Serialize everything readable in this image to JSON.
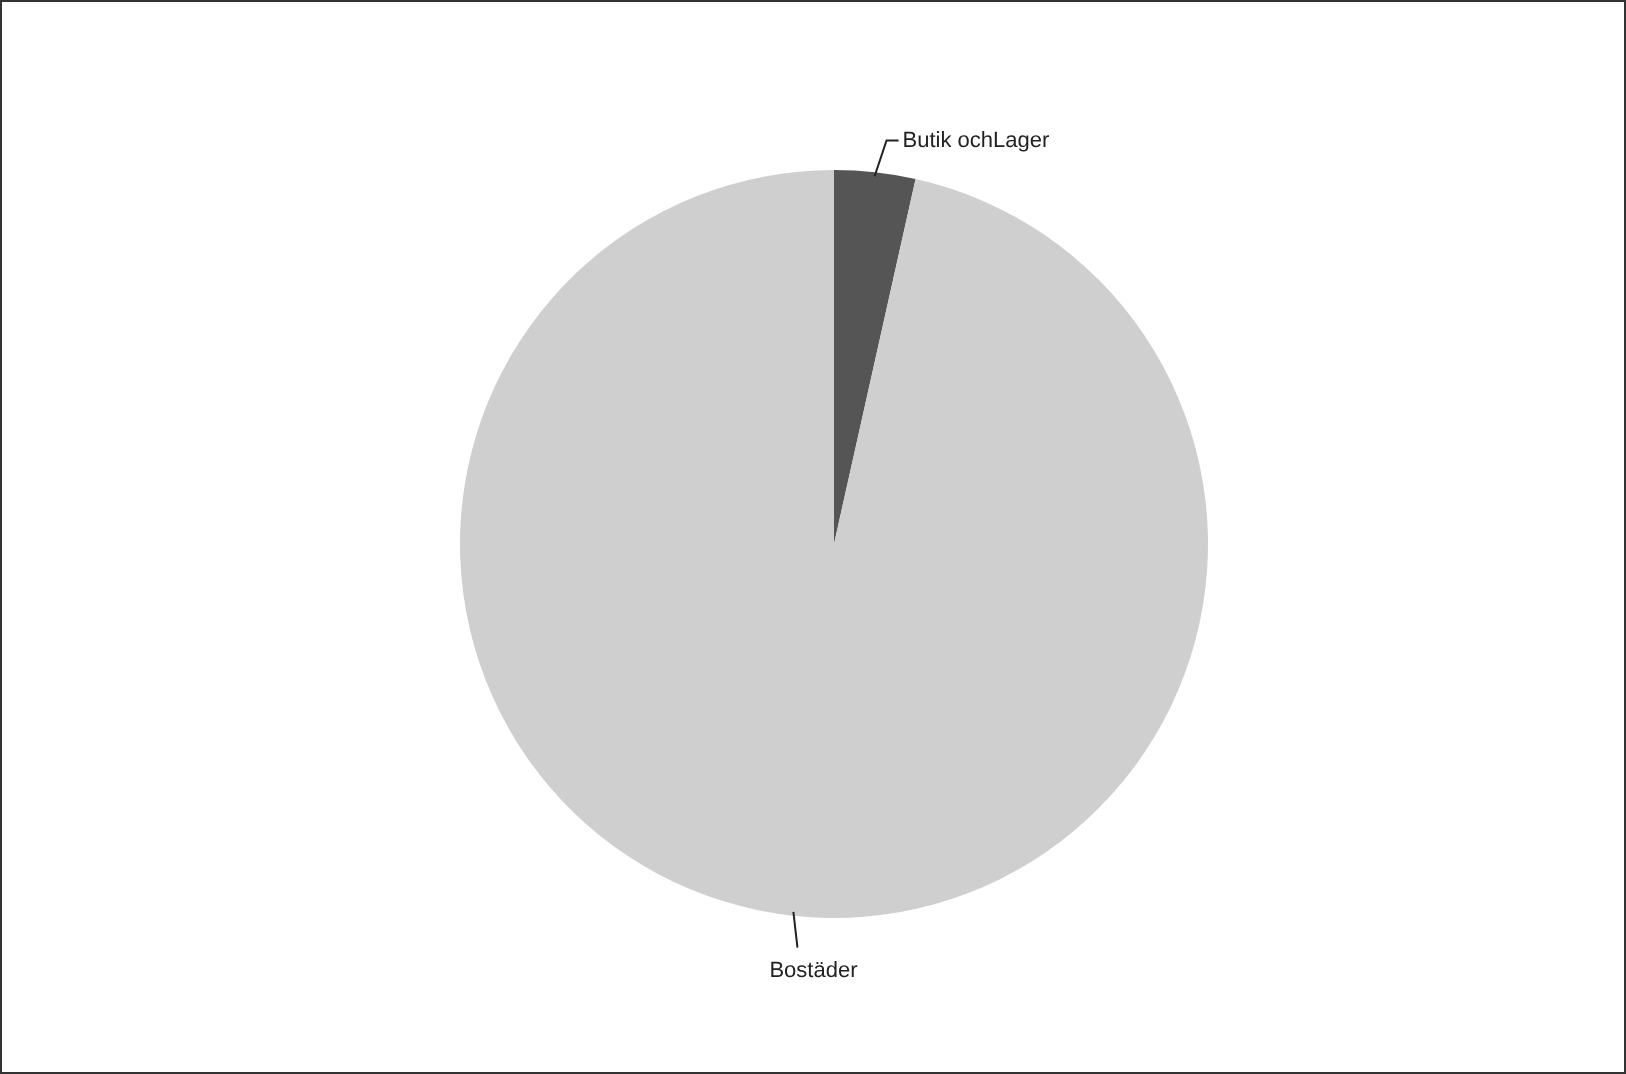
{
  "chart_data": {
    "type": "pie",
    "categories": [
      "Butik ochLager",
      "Bostäder"
    ],
    "values": [
      3.5,
      96.5
    ],
    "colors": [
      "#555555",
      "#cfcfcf"
    ],
    "legend": false
  }
}
